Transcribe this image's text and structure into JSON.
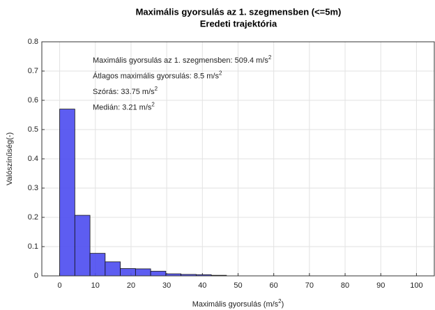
{
  "chart_data": {
    "type": "histogram",
    "title": "Maximális gyorsulás az 1. szegmensben (<=5m)",
    "subtitle": "Eredeti trajektória",
    "xlabel": {
      "text": "Maximális gyorsulás (m/s",
      "sup": "2",
      "after": ")"
    },
    "ylabel": "Valószínűség(-)",
    "annotations": [
      {
        "text": "Maximális gyorsulás az 1. szegmensben: 509.4 m/s",
        "sup": "2"
      },
      {
        "text": "Átlagos maximális gyorsulás: 8.5 m/s",
        "sup": "2"
      },
      {
        "text": "Szórás: 33.75 m/s",
        "sup": "2"
      },
      {
        "text": "Medián: 3.21 m/s",
        "sup": "2"
      }
    ],
    "bins": [
      0,
      4.25,
      8.5,
      12.75,
      17,
      21.25,
      25.5,
      29.75,
      34,
      38.25,
      42.5,
      46.75
    ],
    "values": [
      0.57,
      0.207,
      0.077,
      0.048,
      0.025,
      0.024,
      0.016,
      0.007,
      0.005,
      0.004,
      0.002
    ],
    "color": "#4b4bf0",
    "xlim": [
      -5,
      105
    ],
    "ylim": [
      0,
      0.8
    ],
    "xticks": [
      0,
      10,
      20,
      30,
      40,
      50,
      60,
      70,
      80,
      90,
      100
    ],
    "yticks": [
      0,
      0.1,
      0.2,
      0.3,
      0.4,
      0.5,
      0.6,
      0.7,
      0.8
    ],
    "grid": true
  }
}
